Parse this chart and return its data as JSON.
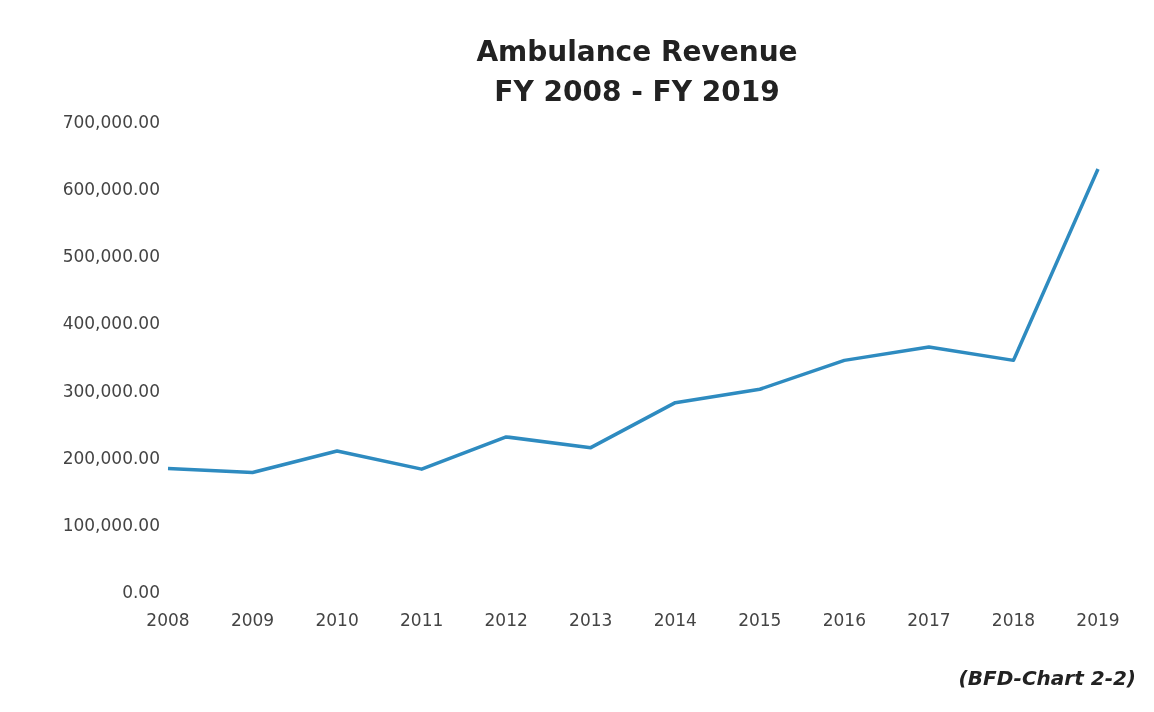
{
  "chart_data": {
    "type": "line",
    "title": "Ambulance Revenue\nFY 2008 - FY 2019",
    "categories": [
      "2008",
      "2009",
      "2010",
      "2011",
      "2012",
      "2013",
      "2014",
      "2015",
      "2016",
      "2017",
      "2018",
      "2019"
    ],
    "series": [
      {
        "color": "#2e8bc0",
        "values": [
          184000,
          178000,
          210000,
          183000,
          231000,
          215000,
          282000,
          302000,
          345000,
          365000,
          345000,
          630000
        ]
      }
    ],
    "ylim": [
      0,
      700000
    ],
    "yticks": [
      {
        "value": 0,
        "label": "0.00"
      },
      {
        "value": 100000,
        "label": "100,000.00"
      },
      {
        "value": 200000,
        "label": "200,000.00"
      },
      {
        "value": 300000,
        "label": "300,000.00"
      },
      {
        "value": 400000,
        "label": "400,000.00"
      },
      {
        "value": 500000,
        "label": "500,000.00"
      },
      {
        "value": 600000,
        "label": "600,000.00"
      },
      {
        "value": 700000,
        "label": "700,000.00"
      }
    ],
    "grid": false,
    "legend": false,
    "marker": "none",
    "line_style": "solid",
    "annotations": [
      "(BFD-Chart 2-2)"
    ]
  }
}
